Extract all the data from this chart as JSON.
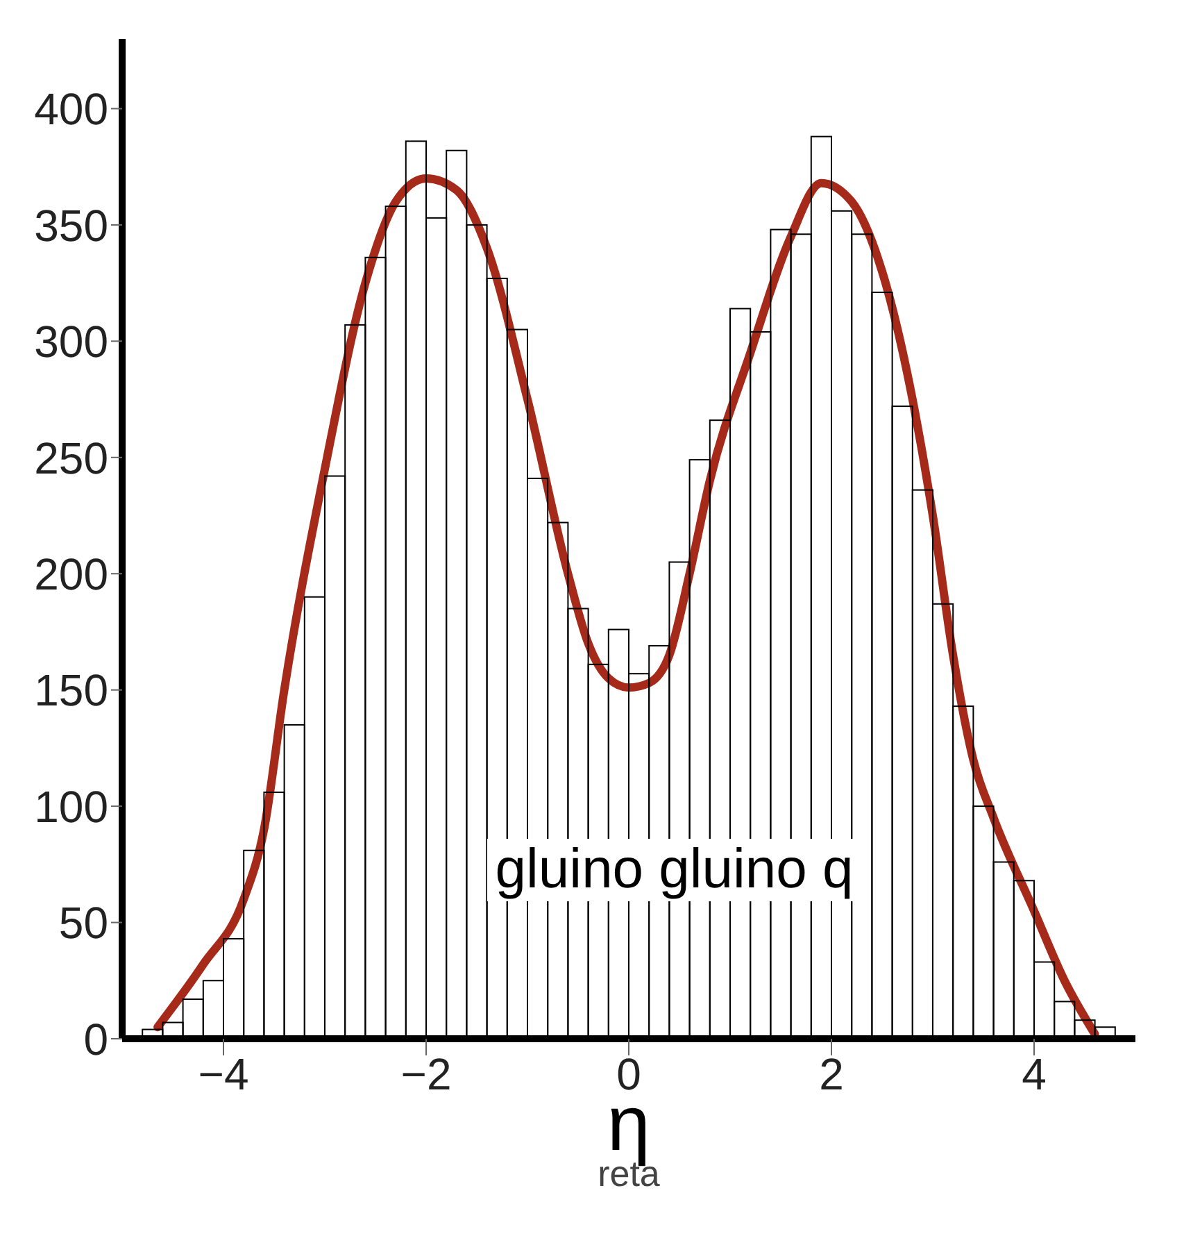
{
  "chart_data": {
    "type": "histogram",
    "xlabel": "η",
    "color": "#000000",
    "bins": [
      -4.8,
      -4.6,
      -4.4,
      -4.2,
      -4.0,
      -3.8,
      -3.6,
      -3.4,
      -3.2,
      -3.0,
      -2.8,
      -2.6,
      -2.4,
      -2.2,
      -2.0,
      -1.8,
      -1.6,
      -1.4,
      -1.2,
      -1.0,
      -0.8,
      -0.6,
      -0.4,
      -0.2,
      0,
      0.2,
      0.4,
      0.6,
      0.8,
      1.0,
      1.2,
      1.4,
      1.6,
      1.8,
      2.0,
      2.2,
      2.4,
      2.6,
      2.8,
      3.0,
      3.2,
      3.4,
      3.6,
      3.8,
      4.0,
      4.2,
      4.4,
      4.6,
      4.8
    ],
    "values": [
      4,
      7,
      17,
      25,
      43,
      81,
      106,
      135,
      190,
      242,
      307,
      336,
      358,
      386,
      353,
      382,
      350,
      327,
      305,
      241,
      222,
      185,
      161,
      176,
      157,
      169,
      205,
      249,
      266,
      314,
      304,
      348,
      346,
      388,
      356,
      346,
      321,
      272,
      236,
      187,
      143,
      100,
      76,
      68,
      33,
      16,
      8,
      5
    ],
    "series": [
      {
        "type": "line",
        "color": "#a52a1a",
        "x": [
          -4.65,
          -4.2,
          -3.8,
          -3.6,
          -3.4,
          -3.0,
          -2.6,
          -2.3,
          -2.0,
          -1.7,
          -1.4,
          -1.0,
          -0.6,
          -0.4,
          -0.2,
          0,
          0.2,
          0.4,
          0.6,
          0.8,
          1.2,
          1.6,
          1.9,
          2.2,
          2.5,
          2.8,
          3.0,
          3.2,
          3.4,
          3.6,
          4.0,
          4.3,
          4.6
        ],
        "values": [
          5,
          32,
          60,
          90,
          150,
          245,
          325,
          360,
          370,
          365,
          340,
          275,
          200,
          170,
          155,
          151,
          153,
          165,
          200,
          240,
          295,
          345,
          368,
          360,
          330,
          275,
          225,
          165,
          120,
          95,
          55,
          25,
          2
        ]
      }
    ],
    "xlim": [
      -5,
      5
    ],
    "xticks": [
      -4,
      -2,
      0,
      2,
      4
    ],
    "ylim": [
      0,
      430
    ],
    "yticks": [
      0,
      50,
      100,
      150,
      200,
      250,
      300,
      350,
      400
    ],
    "annotations": [
      "gluino  gluino  q",
      "reta"
    ]
  }
}
